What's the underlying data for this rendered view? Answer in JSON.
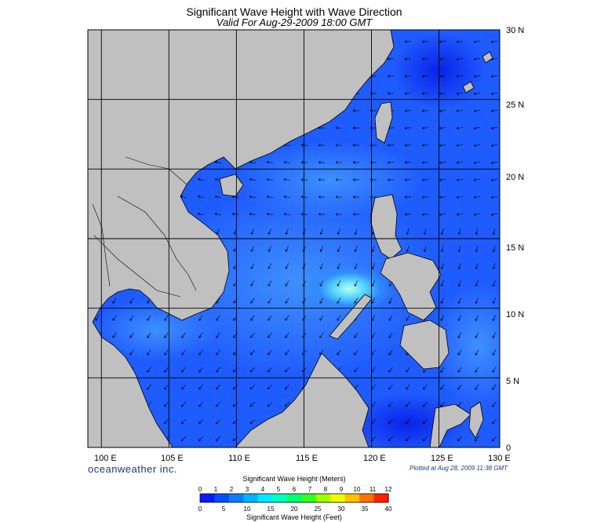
{
  "title": "Significant Wave Height with Wave Direction",
  "subtitle": "Valid For Aug-29-2009 18:00 GMT",
  "brand": "oceanweather inc.",
  "plotted": "Plotted at Aug 28, 2009 11:38 GMT",
  "axes": {
    "lon_labels": [
      "100 E",
      "105 E",
      "110 E",
      "115 E",
      "120 E",
      "125 E",
      "130 E"
    ],
    "lat_labels": [
      "0",
      "5 N",
      "10 N",
      "15 N",
      "20 N",
      "25 N",
      "30 N"
    ],
    "lon_range": [
      99,
      129.5
    ],
    "lat_range": [
      0,
      30
    ]
  },
  "colorbar": {
    "meters_title": "Significant Wave Height (Meters)",
    "feet_title": "Significant Wave Height (Feet)",
    "meters_ticks": [
      "0",
      "1",
      "2",
      "3",
      "4",
      "5",
      "6",
      "7",
      "8",
      "9",
      "10",
      "11",
      "12"
    ],
    "feet_ticks": [
      "0",
      "5",
      "10",
      "15",
      "20",
      "25",
      "30",
      "35",
      "40"
    ],
    "colors": [
      "#0a1aff",
      "#0a4cff",
      "#0a7eff",
      "#00b4ff",
      "#00e8ff",
      "#00ffc0",
      "#00ff70",
      "#30ff20",
      "#a0ff00",
      "#f0ff00",
      "#ffc000",
      "#ff7000",
      "#ff2000"
    ]
  },
  "colors": {
    "land": "#c0c0c0",
    "sea_deep": "#1040ff",
    "sea_mid": "#2a6cff",
    "sea_light": "#5aa0ff",
    "hotspot": "#a0ffe0",
    "grid": "#000000"
  }
}
